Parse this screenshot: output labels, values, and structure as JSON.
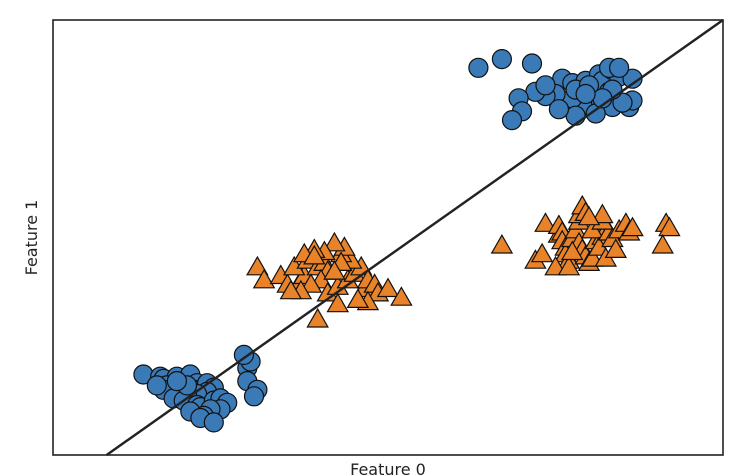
{
  "chart_data": {
    "type": "scatter",
    "title": "",
    "xlabel": "Feature 0",
    "ylabel": "Feature 1",
    "xlim": [
      0,
      100
    ],
    "ylim": [
      0,
      100
    ],
    "grid": false,
    "ticks_shown": false,
    "series": [
      {
        "marker": "circle",
        "color": "#3a7ab7",
        "points": [
          [
            63.5,
            89
          ],
          [
            67,
            91
          ],
          [
            71.5,
            90
          ],
          [
            76,
            86.5
          ],
          [
            77.5,
            85.5
          ],
          [
            79.5,
            86
          ],
          [
            81.5,
            87.5
          ],
          [
            82,
            86
          ],
          [
            83.5,
            88.5
          ],
          [
            84.5,
            87
          ],
          [
            83,
            83.5
          ],
          [
            82.5,
            81
          ],
          [
            80.5,
            79.5
          ],
          [
            79,
            80.5
          ],
          [
            77.5,
            82
          ],
          [
            75,
            83
          ],
          [
            73.5,
            82.5
          ],
          [
            72,
            83.5
          ],
          [
            69.5,
            82
          ],
          [
            70,
            79
          ],
          [
            68.5,
            77
          ],
          [
            78,
            78
          ],
          [
            86,
            80
          ],
          [
            86.5,
            81.5
          ],
          [
            83.5,
            80
          ],
          [
            75.5,
            79.5
          ],
          [
            81,
            78.5
          ],
          [
            85,
            81
          ],
          [
            86.5,
            86.5
          ],
          [
            83,
            89
          ],
          [
            83.5,
            84
          ],
          [
            78,
            84
          ],
          [
            80,
            85
          ],
          [
            82,
            82
          ],
          [
            84.5,
            89
          ],
          [
            73.5,
            85
          ],
          [
            79.5,
            83
          ],
          [
            13.5,
            18.5
          ],
          [
            16,
            18
          ],
          [
            16.5,
            17.5
          ],
          [
            18.5,
            18
          ],
          [
            20.5,
            18.5
          ],
          [
            21.5,
            16.5
          ],
          [
            21,
            15
          ],
          [
            22.5,
            15.5
          ],
          [
            23,
            16.5
          ],
          [
            24,
            15.5
          ],
          [
            23,
            14.5
          ],
          [
            21.5,
            14
          ],
          [
            20,
            14
          ],
          [
            18.5,
            15
          ],
          [
            17,
            16
          ],
          [
            16.5,
            15
          ],
          [
            15.5,
            16
          ],
          [
            18,
            13
          ],
          [
            19.5,
            12.5
          ],
          [
            21.5,
            11.5
          ],
          [
            22,
            11
          ],
          [
            24,
            12.5
          ],
          [
            25,
            13
          ],
          [
            26,
            12
          ],
          [
            25,
            10.5
          ],
          [
            23.5,
            10.5
          ],
          [
            22.5,
            9
          ],
          [
            20.5,
            10
          ],
          [
            22,
            8.5
          ],
          [
            24,
            7.5
          ],
          [
            29,
            20
          ],
          [
            29.5,
            21.5
          ],
          [
            29,
            17
          ],
          [
            30.5,
            15
          ],
          [
            30,
            13.5
          ],
          [
            28.5,
            23
          ],
          [
            20,
            16
          ],
          [
            18.5,
            17
          ]
        ]
      },
      {
        "marker": "triangle",
        "color": "#e8832a",
        "points": [
          [
            30.5,
            43
          ],
          [
            31.5,
            40
          ],
          [
            34,
            41
          ],
          [
            35,
            39
          ],
          [
            36.5,
            38.5
          ],
          [
            37.5,
            41
          ],
          [
            36,
            43
          ],
          [
            38,
            44.5
          ],
          [
            39.5,
            43
          ],
          [
            40.5,
            44
          ],
          [
            41,
            42
          ],
          [
            40,
            40
          ],
          [
            38.5,
            39
          ],
          [
            37,
            37.5
          ],
          [
            35.5,
            37.5
          ],
          [
            41,
            37
          ],
          [
            42.5,
            38.5
          ],
          [
            44,
            40
          ],
          [
            45,
            41.5
          ],
          [
            46,
            43
          ],
          [
            44.5,
            44.5
          ],
          [
            43,
            46
          ],
          [
            43.5,
            47.5
          ],
          [
            42,
            48.5
          ],
          [
            40.5,
            46.5
          ],
          [
            39,
            47
          ],
          [
            37.5,
            46
          ],
          [
            43,
            44
          ],
          [
            46.5,
            38
          ],
          [
            47,
            40
          ],
          [
            48,
            39
          ],
          [
            48.5,
            37
          ],
          [
            50,
            38
          ],
          [
            47,
            35
          ],
          [
            45.5,
            35.5
          ],
          [
            42.5,
            34.5
          ],
          [
            39.5,
            31
          ],
          [
            52,
            36
          ],
          [
            39,
            45.5
          ],
          [
            42,
            42
          ],
          [
            67,
            48
          ],
          [
            72,
            44.5
          ],
          [
            73,
            46
          ],
          [
            73.5,
            53
          ],
          [
            75.5,
            50.5
          ],
          [
            75.5,
            52.5
          ],
          [
            76,
            51
          ],
          [
            76,
            49
          ],
          [
            76.5,
            47.5
          ],
          [
            76.5,
            46
          ],
          [
            77,
            44.5
          ],
          [
            75,
            43
          ],
          [
            77,
            43
          ],
          [
            77.5,
            49.5
          ],
          [
            78,
            51.5
          ],
          [
            78.5,
            53.5
          ],
          [
            78.5,
            55
          ],
          [
            79,
            57
          ],
          [
            79.5,
            55.5
          ],
          [
            78.5,
            48.5
          ],
          [
            79,
            47
          ],
          [
            79.5,
            45.5
          ],
          [
            80,
            44
          ],
          [
            80.5,
            45
          ],
          [
            81,
            49
          ],
          [
            81.5,
            52
          ],
          [
            82,
            50
          ],
          [
            80.5,
            51.5
          ],
          [
            81.5,
            47.5
          ],
          [
            82.5,
            45
          ],
          [
            83,
            51
          ],
          [
            82,
            53.5
          ],
          [
            83.5,
            49.5
          ],
          [
            84,
            47
          ],
          [
            84.5,
            51.5
          ],
          [
            85.5,
            53
          ],
          [
            86,
            51
          ],
          [
            82,
            55
          ],
          [
            86.5,
            52
          ],
          [
            91.5,
            53
          ],
          [
            92,
            52
          ],
          [
            91,
            48
          ],
          [
            77.5,
            46.5
          ],
          [
            80,
            54.5
          ]
        ]
      }
    ],
    "decision_line": [
      [
        8,
        0
      ],
      [
        100,
        100
      ]
    ]
  }
}
